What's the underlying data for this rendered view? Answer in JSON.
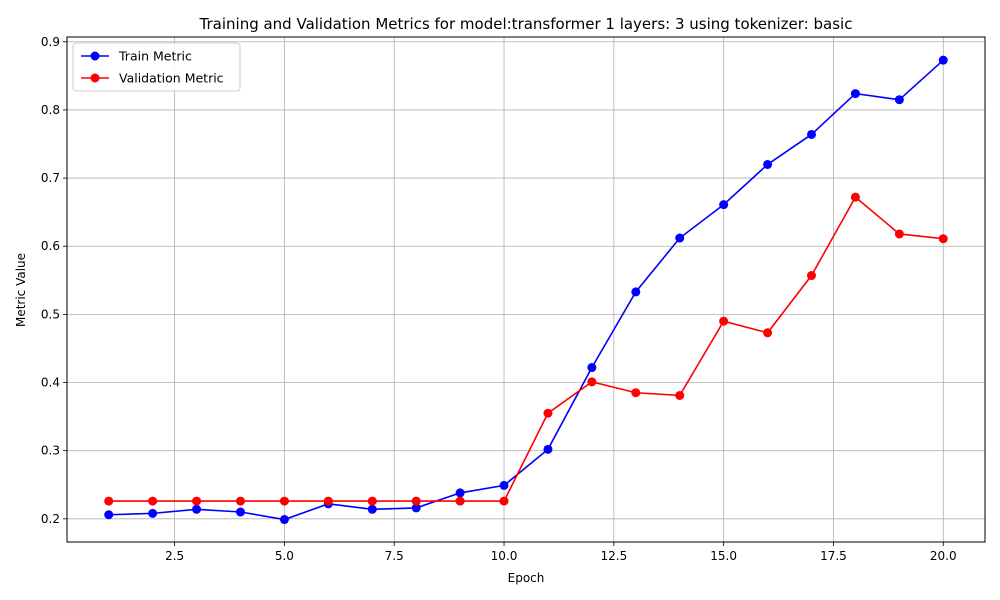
{
  "chart_data": {
    "type": "line",
    "title": "Training and Validation Metrics for model:transformer 1 layers: 3 using tokenizer: basic",
    "xlabel": "Epoch",
    "ylabel": "Metric Value",
    "xlim": [
      0.05,
      20.95
    ],
    "ylim": [
      0.166,
      0.907
    ],
    "xticks": [
      2.5,
      5.0,
      7.5,
      10.0,
      12.5,
      15.0,
      17.5,
      20.0
    ],
    "xtick_labels": [
      "2.5",
      "5.0",
      "7.5",
      "10.0",
      "12.5",
      "15.0",
      "17.5",
      "20.0"
    ],
    "yticks": [
      0.2,
      0.3,
      0.4,
      0.5,
      0.6,
      0.7,
      0.8,
      0.9
    ],
    "ytick_labels": [
      "0.2",
      "0.3",
      "0.4",
      "0.5",
      "0.6",
      "0.7",
      "0.8",
      "0.9"
    ],
    "grid": true,
    "legend_position": "top-left",
    "x": [
      1,
      2,
      3,
      4,
      5,
      6,
      7,
      8,
      9,
      10,
      11,
      12,
      13,
      14,
      15,
      16,
      17,
      18,
      19,
      20
    ],
    "series": [
      {
        "name": "Train Metric",
        "color": "#0000ff",
        "values": [
          0.206,
          0.208,
          0.214,
          0.21,
          0.199,
          0.222,
          0.214,
          0.216,
          0.238,
          0.249,
          0.302,
          0.422,
          0.533,
          0.612,
          0.661,
          0.72,
          0.764,
          0.824,
          0.815,
          0.873
        ]
      },
      {
        "name": "Validation Metric",
        "color": "#ff0000",
        "values": [
          0.226,
          0.226,
          0.226,
          0.226,
          0.226,
          0.226,
          0.226,
          0.226,
          0.226,
          0.226,
          0.355,
          0.401,
          0.385,
          0.381,
          0.49,
          0.473,
          0.557,
          0.672,
          0.618,
          0.611
        ]
      }
    ]
  }
}
